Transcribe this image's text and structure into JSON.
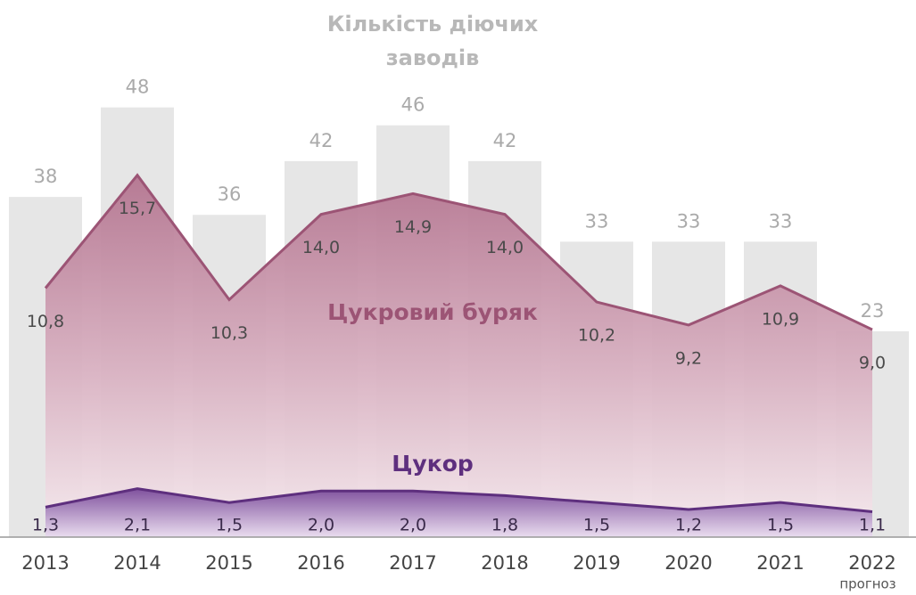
{
  "chart_data": {
    "type": "bar-area",
    "title": "Кількість діючих заводів",
    "categories": [
      "2013",
      "2014",
      "2015",
      "2016",
      "2017",
      "2018",
      "2019",
      "2020",
      "2021",
      "2022"
    ],
    "annotations": [
      "прогноз"
    ],
    "ylim": [
      0,
      60
    ],
    "y2lim": [
      0,
      23.3
    ],
    "series": [
      {
        "type": "bar",
        "color": "#e6e6e6",
        "values": [
          38,
          48,
          36,
          42,
          46,
          42,
          33,
          33,
          33,
          23
        ]
      },
      {
        "type": "area",
        "axis": "y2",
        "name": "Цукровий буряк",
        "color": "#9c5475",
        "values": [
          10.8,
          15.7,
          10.3,
          14.0,
          14.9,
          14.0,
          10.2,
          9.2,
          10.9,
          9.0
        ],
        "value_labels": [
          "10,8",
          "15,7",
          "10,3",
          "14,0",
          "14,9",
          "14,0",
          "10,2",
          "9,2",
          "10,9",
          "9,0"
        ]
      },
      {
        "type": "area",
        "axis": "y2",
        "name": "Цукор",
        "color": "#5e2f7e",
        "values": [
          1.3,
          2.1,
          1.5,
          2.0,
          2.0,
          1.8,
          1.5,
          1.2,
          1.5,
          1.1
        ],
        "value_labels": [
          "1,3",
          "2,1",
          "1,5",
          "2,0",
          "2,0",
          "1,8",
          "1,5",
          "1,2",
          "1,5",
          "1,1"
        ]
      }
    ]
  }
}
